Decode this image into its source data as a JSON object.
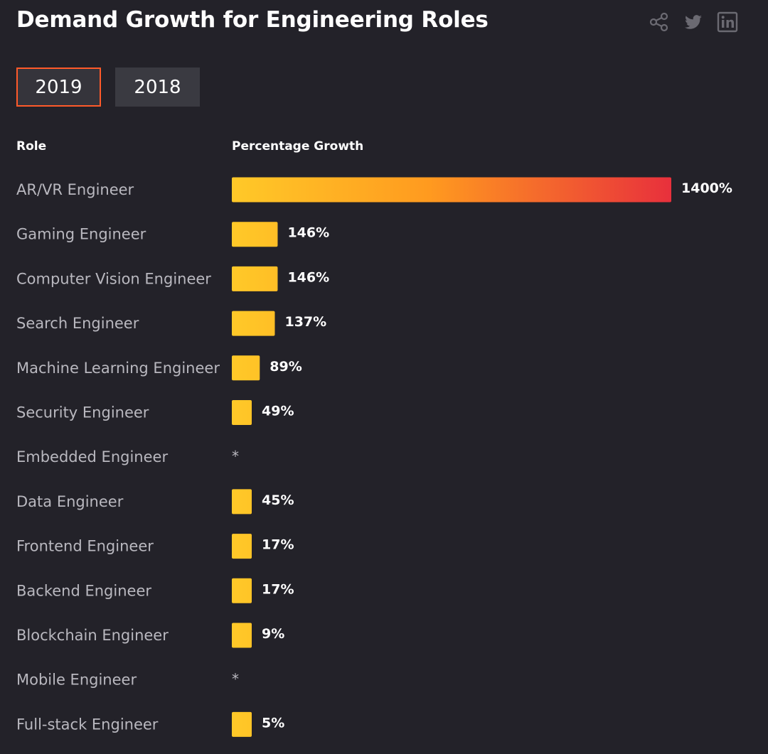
{
  "title": "Demand Growth for Engineering Roles",
  "social": {
    "icons": [
      "share-icon",
      "twitter-icon",
      "linkedin-icon"
    ]
  },
  "tabs": [
    {
      "label": "2019",
      "active": true
    },
    {
      "label": "2018",
      "active": false
    }
  ],
  "headers": {
    "role": "Role",
    "growth": "Percentage Growth"
  },
  "colors": {
    "bar_start": "#ffc928",
    "bar_end": "#e8303c",
    "accent": "#ff5a2a"
  },
  "chart_data": {
    "type": "bar",
    "orientation": "horizontal",
    "title": "Demand Growth for Engineering Roles",
    "xlabel": "Percentage Growth",
    "ylabel": "Role",
    "categories": [
      "AR/VR Engineer",
      "Gaming Engineer",
      "Computer Vision Engineer",
      "Search Engineer",
      "Machine Learning Engineer",
      "Security Engineer",
      "Embedded Engineer",
      "Data Engineer",
      "Frontend Engineer",
      "Backend Engineer",
      "Blockchain Engineer",
      "Mobile Engineer",
      "Full-stack Engineer"
    ],
    "values": [
      1400,
      146,
      146,
      137,
      89,
      49,
      null,
      45,
      17,
      17,
      9,
      null,
      5
    ],
    "labels": [
      "1400%",
      "146%",
      "146%",
      "137%",
      "89%",
      "49%",
      "*",
      "45%",
      "17%",
      "17%",
      "9%",
      "*",
      "5%"
    ],
    "xlim": [
      0,
      1400
    ]
  }
}
